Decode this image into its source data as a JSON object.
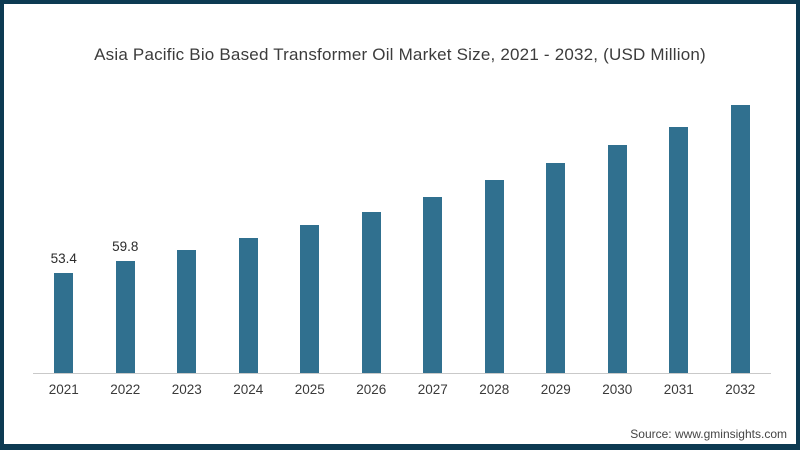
{
  "page": {
    "background": "#ffffff",
    "frame_border_color": "#0d3a52"
  },
  "chart": {
    "bar_color": "#30708f",
    "axis_line_color": "#c9c9c9",
    "title_color": "#3c3c3c"
  },
  "chart_data": {
    "type": "bar",
    "title": "Asia Pacific Bio Based Transformer Oil Market Size, 2021 - 2032, (USD Million)",
    "categories": [
      "2021",
      "2022",
      "2023",
      "2024",
      "2025",
      "2026",
      "2027",
      "2028",
      "2029",
      "2030",
      "2031",
      "2032"
    ],
    "values": [
      53.4,
      59.8,
      65.7,
      72.1,
      79.5,
      86.5,
      94.5,
      103.6,
      112.5,
      122.2,
      132.0,
      143.6
    ],
    "data_labels": {
      "2021": "53.4",
      "2022": "59.8"
    },
    "xlabel": "",
    "ylabel": "",
    "ylim": [
      0,
      150
    ],
    "grid": false,
    "legend": false,
    "source": "Source: www.gminsights.com"
  }
}
